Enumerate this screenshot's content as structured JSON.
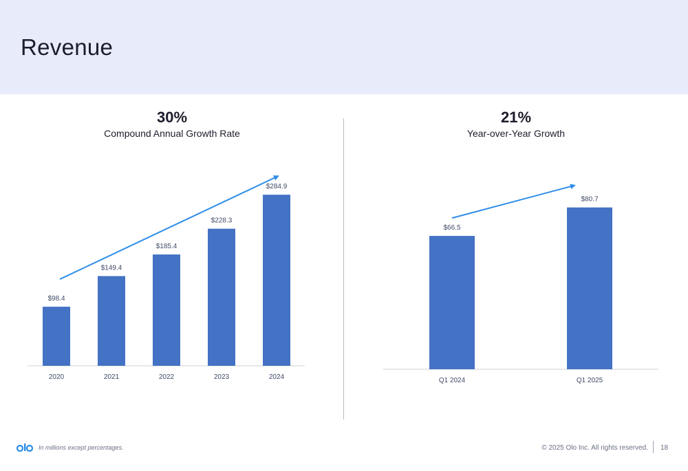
{
  "page": {
    "title": "Revenue",
    "footnote": "In millions except percentages.",
    "copyright": "© 2025 Olo Inc. All rights reserved.",
    "page_number": "18",
    "logo_text": "olo",
    "accent": "#4472c4",
    "arrow_color": "#2e8de8"
  },
  "left_panel": {
    "headline": "30%",
    "subhead": "Compound Annual Growth Rate"
  },
  "right_panel": {
    "headline": "21%",
    "subhead": "Year-over-Year Growth"
  },
  "chart_data": [
    {
      "type": "bar",
      "categories": [
        "2020",
        "2021",
        "2022",
        "2023",
        "2024"
      ],
      "values": [
        98.4,
        149.4,
        185.4,
        228.3,
        284.9
      ],
      "data_labels": [
        "$98.4",
        "$149.4",
        "$185.4",
        "$228.3",
        "$284.9"
      ],
      "ylim": [
        0,
        300
      ],
      "grid": false,
      "trend_arrow": true
    },
    {
      "type": "bar",
      "categories": [
        "Q1 2024",
        "Q1 2025"
      ],
      "values": [
        66.5,
        80.7
      ],
      "data_labels": [
        "$66.5",
        "$80.7"
      ],
      "ylim": [
        0,
        95
      ],
      "grid": false,
      "trend_arrow": true
    }
  ]
}
